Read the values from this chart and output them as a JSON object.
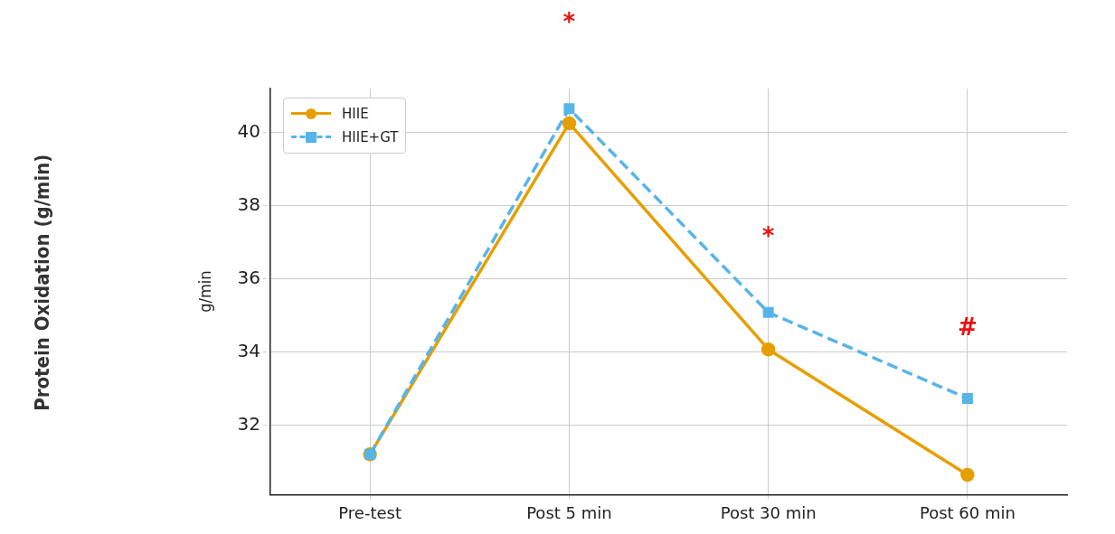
{
  "chart_data": {
    "type": "line",
    "ylabel": "g/min",
    "categories": [
      "Pre-test",
      "Post 5 min",
      "Post 30 min",
      "Post 60 min"
    ],
    "series": [
      {
        "name": "HIIE",
        "color": "#e69f00",
        "values": [
          31.2,
          40.25,
          34.07,
          30.64
        ],
        "marker": "circle",
        "line_style": "solid"
      },
      {
        "name": "HIIE+GT",
        "color": "#56b4e9",
        "values": [
          31.2,
          40.65,
          35.08,
          32.73
        ],
        "marker": "square",
        "line_style": "dashed"
      }
    ],
    "ylim": [
      30.1,
      41.2
    ],
    "yticks": [
      32,
      34,
      36,
      38,
      40
    ],
    "grid": true,
    "legend": "top left",
    "annotations": [
      "Protein Oxidation (g/min)",
      "*",
      "*",
      "#"
    ]
  }
}
